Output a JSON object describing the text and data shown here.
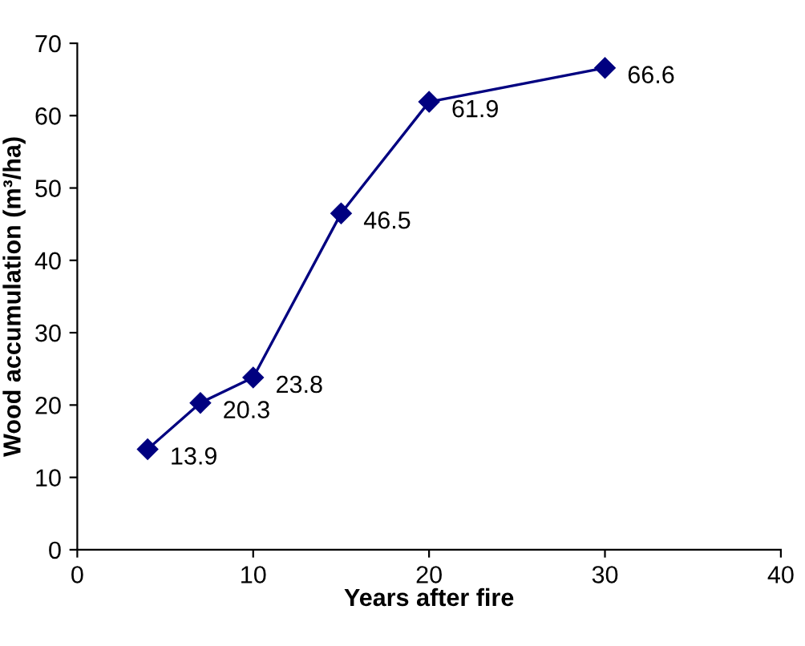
{
  "chart_data": {
    "type": "line",
    "xlabel": "Years after fire",
    "ylabel": "Wood accumulation (m³/ha)",
    "x": [
      4,
      7,
      10,
      15,
      20,
      30
    ],
    "series": [
      {
        "color": "#000080",
        "values": [
          13.9,
          20.3,
          23.8,
          46.5,
          61.9,
          66.6
        ]
      }
    ],
    "xlim": [
      0,
      40
    ],
    "xticks": [
      0,
      10,
      20,
      30,
      40
    ],
    "ylim": [
      0,
      70
    ],
    "yticks": [
      0,
      10,
      20,
      30,
      40,
      50,
      60,
      70
    ],
    "data_labels": true,
    "marker": "diamond",
    "line_style": "solid",
    "grid": false,
    "legend": false
  }
}
